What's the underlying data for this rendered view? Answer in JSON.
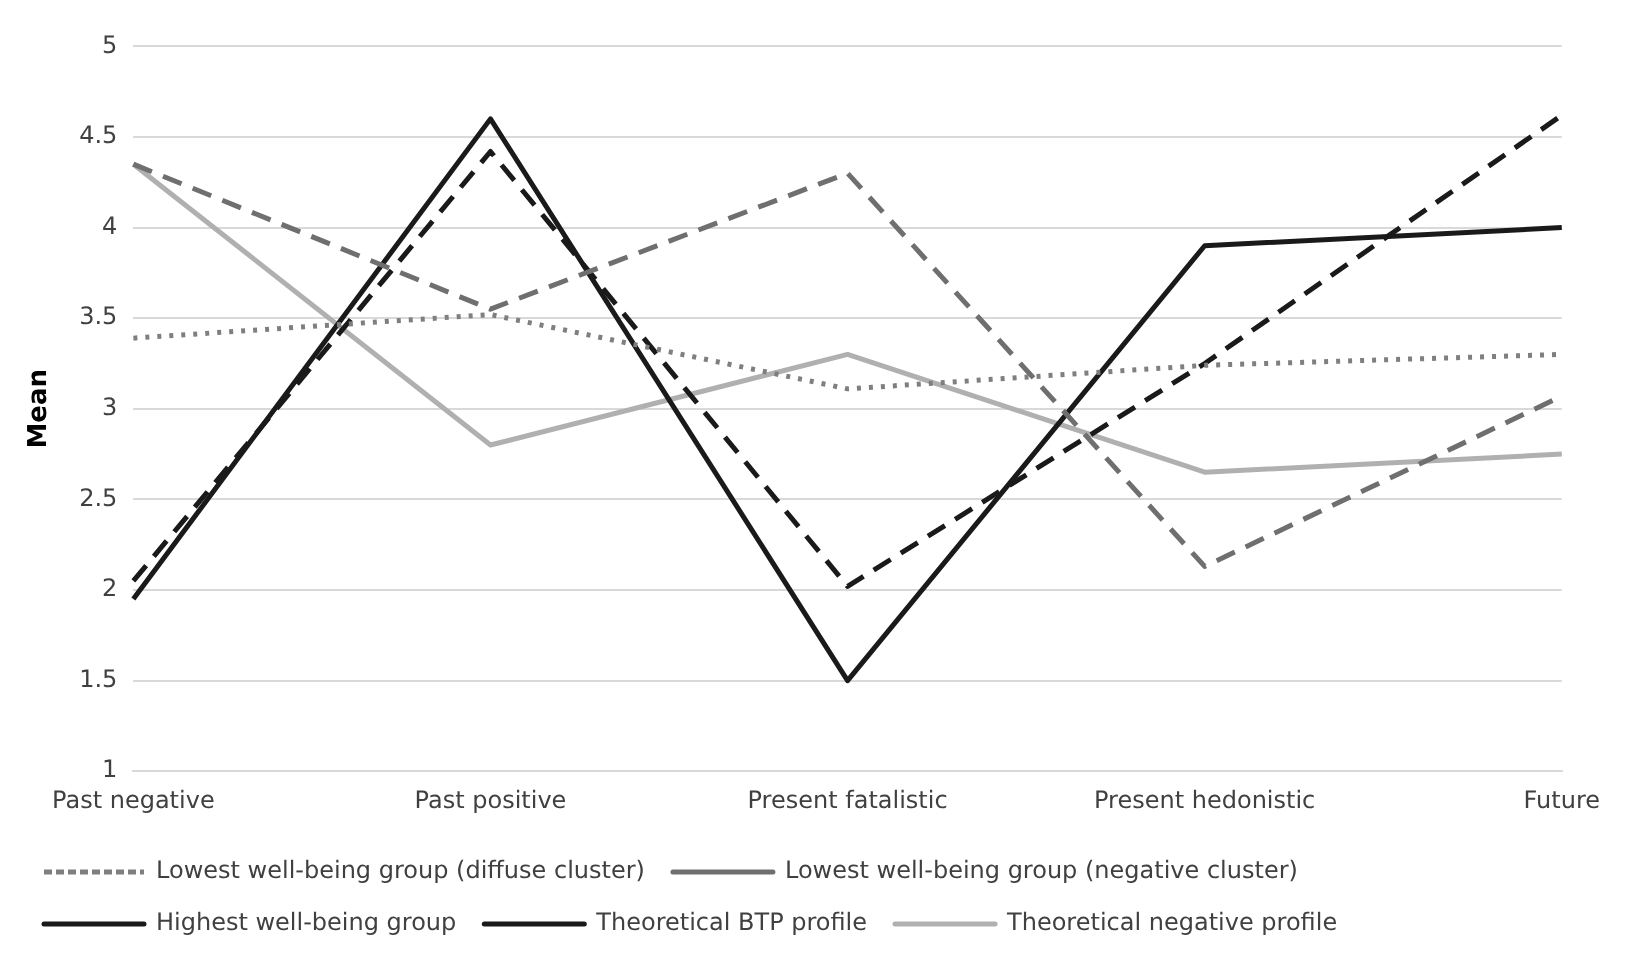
{
  "chart_data": {
    "type": "line",
    "ylabel": "Mean",
    "categories": [
      "Past negative",
      "Past positive",
      "Present fatalistic",
      "Present hedonistic",
      "Future"
    ],
    "ylim": [
      1,
      5
    ],
    "yticks": [
      1,
      1.5,
      2,
      2.5,
      3,
      3.5,
      4,
      4.5,
      5
    ],
    "grid": "y",
    "legend": "bottom",
    "marker": "none",
    "series": [
      {
        "name": "Lowest well-being group (diffuse cluster)",
        "color": "#7f7f7f",
        "line_style": "dotted",
        "values": [
          3.39,
          3.52,
          3.11,
          3.24,
          3.3
        ]
      },
      {
        "name": "Lowest well-being group (negative cluster)",
        "color": "#6f6f6f",
        "line_style": "dashed",
        "values": [
          4.35,
          3.55,
          4.3,
          2.13,
          3.07
        ]
      },
      {
        "name": "Highest well-being group",
        "color": "#1a1a1a",
        "line_style": "dashed",
        "values": [
          2.05,
          4.42,
          2.02,
          3.25,
          4.62
        ]
      },
      {
        "name": "Theoretical BTP profile",
        "color": "#1a1a1a",
        "line_style": "solid",
        "values": [
          1.95,
          4.6,
          1.5,
          3.9,
          4.0
        ]
      },
      {
        "name": "Theoretical negative profile",
        "color": "#b0b0b0",
        "line_style": "solid",
        "values": [
          4.35,
          2.8,
          3.3,
          2.65,
          2.75
        ]
      }
    ]
  }
}
